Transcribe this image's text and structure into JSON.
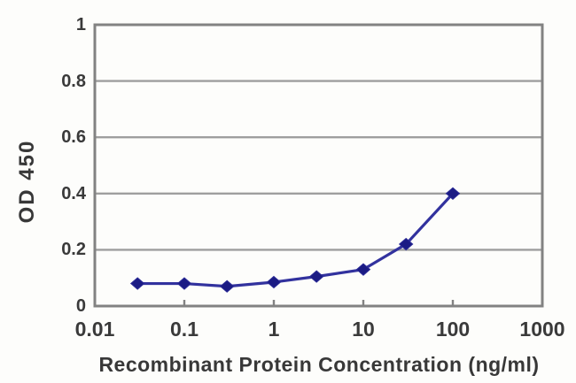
{
  "chart_data": {
    "type": "line",
    "title": "",
    "xlabel": "Recombinant Protein Concentration (ng/ml)",
    "ylabel": "OD 450",
    "x_scale": "log",
    "y_scale": "linear",
    "xlim": [
      0.01,
      1000
    ],
    "ylim": [
      0,
      1
    ],
    "x_ticks": [
      0.01,
      0.1,
      1,
      10,
      100,
      1000
    ],
    "x_tick_labels": [
      "0.01",
      "0.1",
      "1",
      "10",
      "100",
      "1000"
    ],
    "y_ticks": [
      0,
      0.2,
      0.4,
      0.6,
      0.8,
      1
    ],
    "y_tick_labels": [
      "0",
      "0.2",
      "0.4",
      "0.6",
      "0.8",
      "1"
    ],
    "grid": "horizontal",
    "legend": "none",
    "series": [
      {
        "name": "OD450",
        "marker": "diamond",
        "x": [
          0.03,
          0.1,
          0.3,
          1,
          3,
          10,
          30,
          100
        ],
        "y": [
          0.08,
          0.08,
          0.07,
          0.085,
          0.105,
          0.13,
          0.22,
          0.4
        ]
      }
    ],
    "colors": {
      "line": "#32329e",
      "marker_fill": "#1b1b84",
      "marker_stroke": "#2a2a96",
      "grid": "#9e9e9e",
      "frame": "#828282",
      "tick": "#828282",
      "text": "#3a3a3a",
      "background": "#fdfdfb"
    }
  }
}
